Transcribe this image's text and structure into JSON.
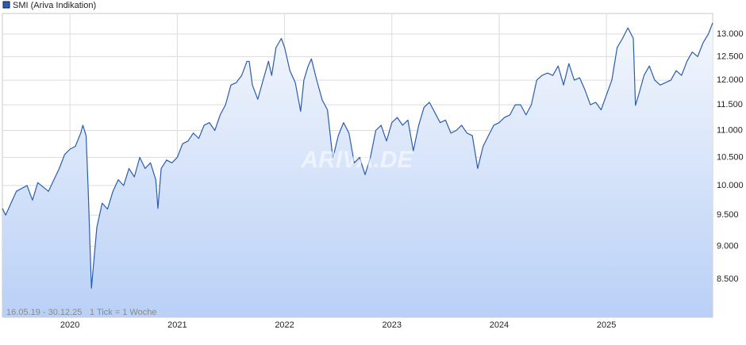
{
  "chart_data": {
    "type": "line",
    "log_scale": true,
    "grid": true,
    "area": true,
    "legend": "top-left",
    "watermark": "ARIVA.DE",
    "annotations": [
      "16.05.19 - 30.12.25",
      "1 Tick = 1 Woche"
    ],
    "xlim": [
      2019.37,
      2025.99
    ],
    "xticks": [
      2020,
      2021,
      2022,
      2023,
      2024,
      2025
    ],
    "ylim": [
      7960,
      13470
    ],
    "yticks": [
      {
        "value": 8500,
        "label": "8.500"
      },
      {
        "value": 9000,
        "label": "9.000"
      },
      {
        "value": 9500,
        "label": "9.500"
      },
      {
        "value": 10000,
        "label": "10.000"
      },
      {
        "value": 10500,
        "label": "10.500"
      },
      {
        "value": 11000,
        "label": "11.000"
      },
      {
        "value": 11500,
        "label": "11.500"
      },
      {
        "value": 12000,
        "label": "12.000"
      },
      {
        "value": 12500,
        "label": "12.500"
      },
      {
        "value": 13000,
        "label": "13.000"
      }
    ],
    "x": [
      2019.37,
      2019.4,
      2019.5,
      2019.6,
      2019.65,
      2019.7,
      2019.8,
      2019.85,
      2019.9,
      2019.95,
      2020.0,
      2020.05,
      2020.1,
      2020.12,
      2020.15,
      2020.17,
      2020.2,
      2020.25,
      2020.3,
      2020.35,
      2020.4,
      2020.45,
      2020.5,
      2020.55,
      2020.6,
      2020.65,
      2020.7,
      2020.75,
      2020.8,
      2020.82,
      2020.85,
      2020.9,
      2020.95,
      2021.0,
      2021.05,
      2021.1,
      2021.15,
      2021.2,
      2021.25,
      2021.3,
      2021.35,
      2021.4,
      2021.45,
      2021.5,
      2021.55,
      2021.6,
      2021.65,
      2021.67,
      2021.7,
      2021.75,
      2021.8,
      2021.85,
      2021.88,
      2021.92,
      2021.97,
      2022.0,
      2022.05,
      2022.1,
      2022.15,
      2022.18,
      2022.22,
      2022.25,
      2022.3,
      2022.35,
      2022.4,
      2022.45,
      2022.5,
      2022.55,
      2022.6,
      2022.65,
      2022.7,
      2022.75,
      2022.8,
      2022.85,
      2022.9,
      2022.95,
      2023.0,
      2023.05,
      2023.1,
      2023.15,
      2023.2,
      2023.25,
      2023.3,
      2023.35,
      2023.4,
      2023.45,
      2023.5,
      2023.55,
      2023.6,
      2023.65,
      2023.7,
      2023.75,
      2023.8,
      2023.85,
      2023.9,
      2023.95,
      2024.0,
      2024.05,
      2024.1,
      2024.15,
      2024.2,
      2024.25,
      2024.3,
      2024.35,
      2024.4,
      2024.45,
      2024.5,
      2024.55,
      2024.6,
      2024.65,
      2024.7,
      2024.75,
      2024.8,
      2024.85,
      2024.9,
      2024.95,
      2025.0,
      2025.05,
      2025.1,
      2025.15,
      2025.2,
      2025.25,
      2025.27,
      2025.3,
      2025.35,
      2025.4,
      2025.45,
      2025.5,
      2025.55,
      2025.6,
      2025.65,
      2025.7,
      2025.75,
      2025.8,
      2025.85,
      2025.9,
      2025.95,
      2025.99
    ],
    "series": [
      {
        "name": "SMI (Ariva Indikation)",
        "color": "#2a5db0",
        "values": [
          9610,
          9500,
          9900,
          10000,
          9750,
          10050,
          9900,
          10100,
          10300,
          10550,
          10650,
          10700,
          10950,
          11100,
          10900,
          9900,
          8370,
          9300,
          9700,
          9600,
          9900,
          10100,
          10000,
          10300,
          10150,
          10500,
          10300,
          10400,
          10100,
          9610,
          10300,
          10450,
          10400,
          10500,
          10750,
          10800,
          10950,
          10850,
          11100,
          11150,
          11000,
          11300,
          11500,
          11900,
          11950,
          12100,
          12400,
          12400,
          11900,
          11610,
          12000,
          12400,
          12100,
          12700,
          12900,
          12700,
          12200,
          11950,
          11370,
          12000,
          12300,
          12450,
          12000,
          11600,
          11400,
          10480,
          10900,
          11150,
          10950,
          10400,
          10500,
          10190,
          10500,
          11000,
          11100,
          10800,
          11150,
          11250,
          11100,
          11200,
          10620,
          11100,
          11450,
          11550,
          11350,
          11150,
          11200,
          10950,
          11000,
          11100,
          10950,
          10900,
          10300,
          10700,
          10900,
          11100,
          11150,
          11250,
          11300,
          11500,
          11500,
          11300,
          11500,
          12000,
          12100,
          12150,
          12100,
          12300,
          11900,
          12350,
          12000,
          12050,
          11800,
          11500,
          11550,
          11400,
          11700,
          12000,
          12700,
          12900,
          13140,
          12900,
          11490,
          11700,
          12100,
          12300,
          12000,
          11900,
          11950,
          12000,
          12200,
          12100,
          12400,
          12600,
          12500,
          12800,
          13000,
          13250
        ]
      }
    ]
  }
}
